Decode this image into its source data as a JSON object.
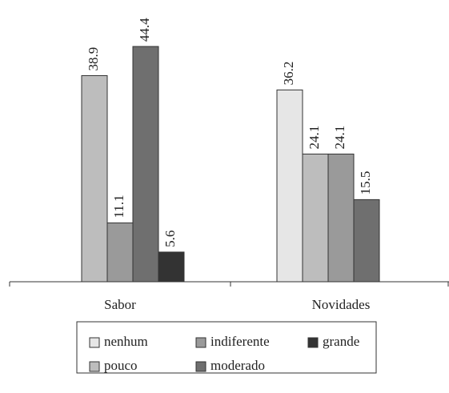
{
  "chart_data": {
    "type": "bar",
    "categories": [
      "Sabor",
      "Novidades"
    ],
    "series": [
      {
        "name": "nenhum",
        "color": "#e6e6e6",
        "values": [
          null,
          36.2
        ]
      },
      {
        "name": "pouco",
        "color": "#bdbdbd",
        "values": [
          38.9,
          24.1
        ]
      },
      {
        "name": "indiferente",
        "color": "#9a9a9a",
        "values": [
          11.1,
          24.1
        ]
      },
      {
        "name": "moderado",
        "color": "#6f6f6f",
        "values": [
          44.4,
          15.5
        ]
      },
      {
        "name": "grande",
        "color": "#333333",
        "values": [
          5.6,
          null
        ]
      }
    ],
    "ylim": [
      0,
      50
    ]
  }
}
